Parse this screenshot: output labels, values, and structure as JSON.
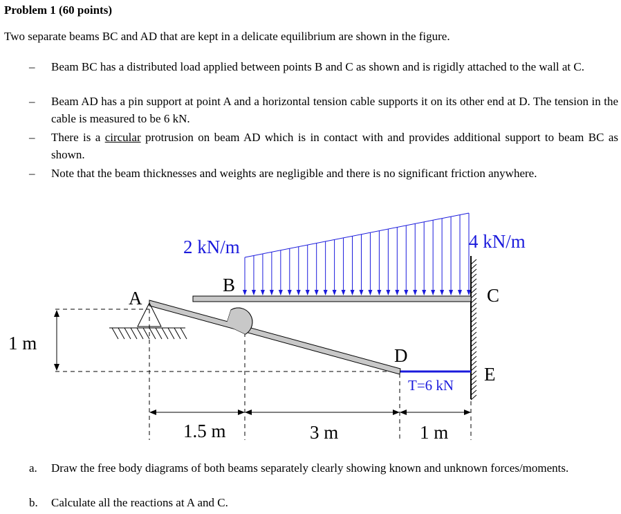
{
  "title": "Problem 1 (60 points)",
  "intro": "Two separate beams BC and AD that are kept in a delicate equilibrium are shown in the figure.",
  "bullets": [
    {
      "dash": "–",
      "text": "Beam BC has a distributed load applied between points B and C as shown and is rigidly attached to the wall at C."
    },
    {
      "dash": "–",
      "text": "Beam AD has a pin support at point A and a horizontal tension cable supports it on its other end at D. The tension in the cable is measured to be 6 kN."
    },
    {
      "dash": "–",
      "pre": "There is a ",
      "underlined": "circular",
      "post": " protrusion on beam AD which is in contact with and provides additional support to beam BC as shown."
    },
    {
      "dash": "–",
      "text": "Note that the beam thicknesses and weights are negligible and there is no significant friction anywhere."
    }
  ],
  "figure": {
    "load_left": "2 kN/m",
    "load_right": "4 kN/m",
    "points": {
      "A": "A",
      "B": "B",
      "C": "C",
      "D": "D",
      "E": "E"
    },
    "tension": "T=6 kN",
    "height_dim": "1 m",
    "dims": [
      "1.5 m",
      "3 m",
      "1 m"
    ],
    "load_color": "#1a1adc",
    "cable_color": "#1a1adc",
    "beam_fill": "#c8c8c8"
  },
  "questions": [
    {
      "label": "a.",
      "text": "Draw the free body diagrams of both beams separately clearly showing known and unknown forces/moments."
    },
    {
      "label": "b.",
      "text": "Calculate all the reactions at A and C."
    }
  ]
}
